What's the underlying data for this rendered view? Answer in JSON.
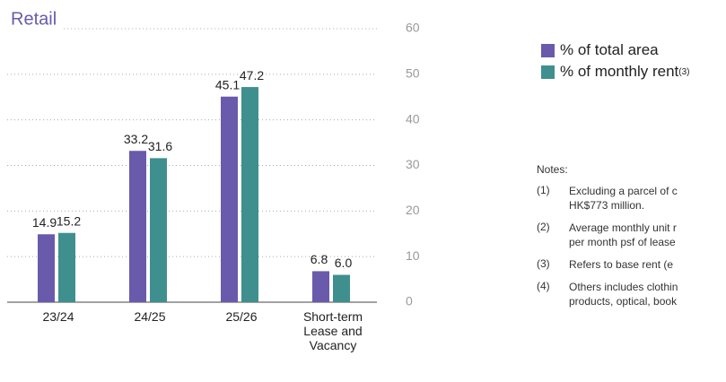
{
  "chart_data": {
    "type": "bar",
    "title": "Retail",
    "categories": [
      "23/24",
      "24/25",
      "25/26",
      "Short-term Lease and Vacancy"
    ],
    "series": [
      {
        "name": "% of total area",
        "color": "#6a5aab",
        "values": [
          14.9,
          33.2,
          45.1,
          6.8
        ]
      },
      {
        "name": "% of monthly rent",
        "note_ref": "(3)",
        "color": "#3f8f8f",
        "values": [
          15.2,
          31.6,
          47.2,
          6
        ],
        "value_labels": [
          "15.2",
          "31.6",
          "47.2",
          "6.0"
        ]
      }
    ],
    "ylim": [
      0,
      60
    ],
    "yticks": [
      0,
      10,
      20,
      30,
      40,
      50,
      60
    ],
    "grid": true,
    "notes_title": "Notes:",
    "notes": [
      {
        "marker": "(1)",
        "lines": [
          "Excluding a parcel of c",
          "HK$773 million."
        ]
      },
      {
        "marker": "(2)",
        "lines": [
          "Average monthly unit r",
          "per month psf of lease"
        ]
      },
      {
        "marker": "(3)",
        "lines": [
          "Refers to base rent (e"
        ]
      },
      {
        "marker": "(4)",
        "lines": [
          "Others includes clothin",
          "products, optical, book"
        ]
      }
    ]
  }
}
